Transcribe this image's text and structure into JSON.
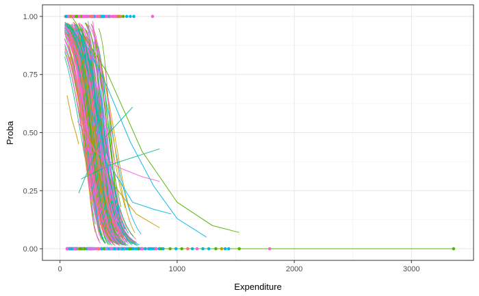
{
  "chart_data": {
    "type": "line",
    "xlabel": "Expenditure",
    "ylabel": "Proba",
    "xlim": [
      -150,
      3530
    ],
    "ylim": [
      -0.05,
      1.05
    ],
    "x_ticks": [
      0,
      1000,
      2000,
      3000
    ],
    "x_tick_labels": [
      "0",
      "1000",
      "2000",
      "3000"
    ],
    "x_minor": [
      500,
      1500,
      2500,
      3500
    ],
    "y_ticks": [
      0,
      0.25,
      0.5,
      0.75,
      1
    ],
    "y_tick_labels": [
      "0.00",
      "0.25",
      "0.50",
      "0.75",
      "1.00"
    ],
    "y_minor": [
      0.125,
      0.375,
      0.625,
      0.875
    ],
    "grid": true,
    "legend": "none",
    "palette": [
      "#F8766D",
      "#C49A00",
      "#53B400",
      "#00C094",
      "#00B6EB",
      "#A58AFF",
      "#FB61D7"
    ],
    "series": [
      {
        "color": "#00C094",
        "x": [
          160,
          330,
          620
        ],
        "y": [
          0.24,
          0.45,
          0.61
        ]
      },
      {
        "color": "#00C094",
        "x": [
          180,
          420,
          850
        ],
        "y": [
          0.3,
          0.36,
          0.43
        ]
      },
      {
        "color": "#53B400",
        "x": [
          100,
          400,
          700,
          1000,
          1300,
          1530
        ],
        "y": [
          1.0,
          0.76,
          0.42,
          0.2,
          0.1,
          0.07
        ]
      },
      {
        "color": "#00B6EB",
        "x": [
          200,
          400,
          600,
          800,
          1000,
          1250
        ],
        "y": [
          0.9,
          0.7,
          0.46,
          0.27,
          0.13,
          0.05
        ]
      },
      {
        "color": "#00B6EB",
        "x": [
          260,
          450,
          620,
          800,
          950
        ],
        "y": [
          0.6,
          0.34,
          0.2,
          0.17,
          0.15
        ]
      },
      {
        "color": "#C49A00",
        "x": [
          200,
          450,
          650,
          850
        ],
        "y": [
          0.52,
          0.28,
          0.15,
          0.09
        ]
      },
      {
        "color": "#FB61D7",
        "x": [
          150,
          300,
          500,
          700,
          850
        ],
        "y": [
          0.55,
          0.42,
          0.35,
          0.31,
          0.29
        ]
      },
      {
        "color": "#C49A00",
        "x": [
          60,
          100,
          140,
          160
        ],
        "y": [
          0.66,
          0.56,
          0.49,
          0.45
        ]
      },
      {
        "color": "#A58AFF",
        "x": [
          240,
          330,
          400,
          430
        ],
        "y": [
          0.98,
          0.55,
          0.3,
          0.21
        ]
      },
      {
        "color": "#53B400",
        "x": [
          300,
          380,
          450,
          520
        ],
        "y": [
          0.9,
          0.62,
          0.35,
          0.18
        ]
      },
      {
        "color": "#F8766D",
        "x": [
          90,
          150,
          200,
          250
        ],
        "y": [
          0.92,
          0.7,
          0.45,
          0.25
        ]
      },
      {
        "color": "#00C094",
        "x": [
          180,
          280,
          380,
          480
        ],
        "y": [
          0.95,
          0.72,
          0.4,
          0.18
        ]
      },
      {
        "color": "#FB61D7",
        "x": [
          210,
          350,
          500
        ],
        "y": [
          0.88,
          0.42,
          0.13
        ]
      },
      {
        "color": "#FB61D7",
        "x": [
          280,
          360,
          430
        ],
        "y": [
          0.98,
          0.55,
          0.2
        ]
      }
    ],
    "points_zero": [
      {
        "x": 600,
        "color": "#53B400"
      },
      {
        "x": 650,
        "color": "#00B6EB"
      },
      {
        "x": 700,
        "color": "#FB61D7"
      },
      {
        "x": 760,
        "color": "#00B6EB"
      },
      {
        "x": 820,
        "color": "#FB61D7"
      },
      {
        "x": 880,
        "color": "#00B6EB"
      },
      {
        "x": 940,
        "color": "#53B400"
      },
      {
        "x": 990,
        "color": "#00B6EB"
      },
      {
        "x": 1040,
        "color": "#53B400"
      },
      {
        "x": 1090,
        "color": "#F8766D"
      },
      {
        "x": 1130,
        "color": "#00B6EB"
      },
      {
        "x": 1170,
        "color": "#FB61D7"
      },
      {
        "x": 1220,
        "color": "#00B6EB"
      },
      {
        "x": 1270,
        "color": "#00B6EB"
      },
      {
        "x": 1330,
        "color": "#53B400"
      },
      {
        "x": 1380,
        "color": "#C49A00"
      },
      {
        "x": 1410,
        "color": "#00B6EB"
      },
      {
        "x": 1440,
        "color": "#00B6EB"
      },
      {
        "x": 1530,
        "color": "#53B400"
      },
      {
        "x": 1790,
        "color": "#FB61D7"
      },
      {
        "x": 3360,
        "color": "#53B400"
      }
    ],
    "points_one": [
      {
        "x": 540,
        "color": "#53B400"
      },
      {
        "x": 570,
        "color": "#00B6EB"
      },
      {
        "x": 600,
        "color": "#00B6EB"
      },
      {
        "x": 630,
        "color": "#00B6EB"
      },
      {
        "x": 790,
        "color": "#FB61D7"
      }
    ],
    "zero_line_end": 3360
  }
}
